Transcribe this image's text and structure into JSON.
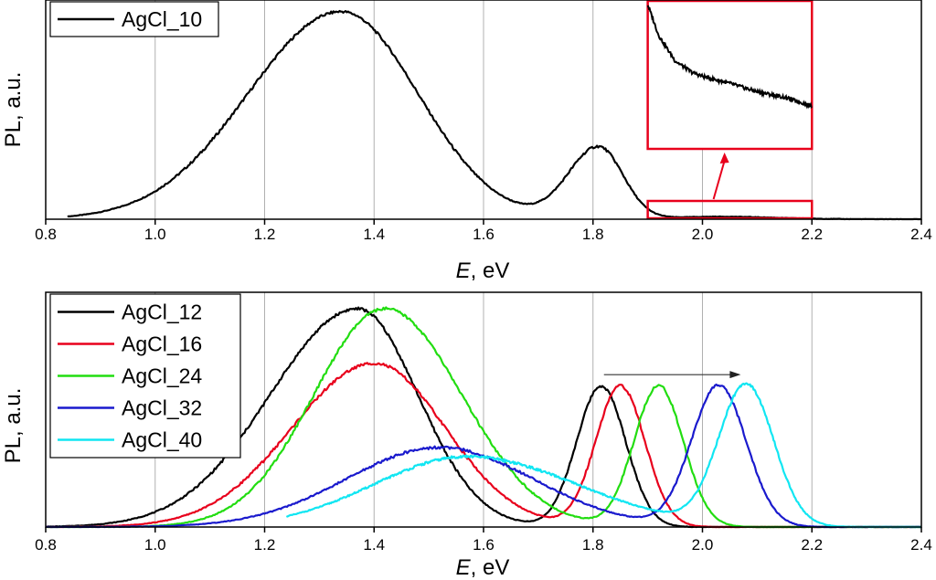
{
  "chart_data": [
    {
      "type": "line",
      "title": "",
      "xlabel": "E, eV",
      "xlabel_italic": "E",
      "xlabel_rest": ", eV",
      "ylabel": "PL, a.u.",
      "xlim": [
        0.8,
        2.4
      ],
      "ylim": [
        0,
        1
      ],
      "xticks": [
        "0.8",
        "1.0",
        "1.2",
        "1.4",
        "1.6",
        "1.8",
        "2.0",
        "2.2",
        "2.4"
      ],
      "grid": "vertical",
      "legend_position": "top-left",
      "series": [
        {
          "name": "AgCl_10",
          "color": "#000000",
          "peaks": [
            {
              "center": 1.34,
              "height": 0.98,
              "width_left": 0.17,
              "width_right": 0.14
            },
            {
              "center": 1.81,
              "height": 0.34,
              "width_left": 0.055,
              "width_right": 0.045
            },
            {
              "center": 2.03,
              "height": 0.012,
              "width_left": 0.08,
              "width_right": 0.1
            }
          ],
          "tail": {
            "start": 0.84,
            "end": 2.4
          }
        }
      ],
      "inset": {
        "zoom_region": {
          "x": [
            1.9,
            2.2
          ],
          "y": [
            0,
            0.1
          ]
        },
        "curve": [
          [
            1.9,
            1.0
          ],
          [
            1.92,
            0.78
          ],
          [
            1.95,
            0.6
          ],
          [
            1.98,
            0.52
          ],
          [
            2.0,
            0.49
          ],
          [
            2.05,
            0.44
          ],
          [
            2.1,
            0.38
          ],
          [
            2.15,
            0.34
          ],
          [
            2.2,
            0.28
          ]
        ],
        "arrow": "from zoom box up to inset",
        "color": "#e8001c"
      }
    },
    {
      "type": "line",
      "title": "",
      "xlabel": "E, eV",
      "xlabel_italic": "E",
      "xlabel_rest": ", eV",
      "ylabel": "PL, a.u.",
      "xlim": [
        0.8,
        2.4
      ],
      "ylim": [
        0,
        1
      ],
      "xticks": [
        "0.8",
        "1.0",
        "1.2",
        "1.4",
        "1.6",
        "1.8",
        "2.0",
        "2.2",
        "2.4"
      ],
      "grid": "vertical",
      "legend_position": "top-left",
      "arrow": {
        "from": 1.82,
        "to": 2.07,
        "y": 0.67
      },
      "series": [
        {
          "name": "AgCl_12",
          "color": "#000000",
          "peaks": [
            {
              "center": 1.37,
              "height": 0.96,
              "width_left": 0.16,
              "width_right": 0.11
            },
            {
              "center": 1.815,
              "height": 0.62,
              "width_left": 0.045,
              "width_right": 0.045
            }
          ],
          "tail": {
            "start": 0.8,
            "end": 2.4
          }
        },
        {
          "name": "AgCl_16",
          "color": "#e8001c",
          "peaks": [
            {
              "center": 1.4,
              "height": 0.72,
              "width_left": 0.15,
              "width_right": 0.13
            },
            {
              "center": 1.85,
              "height": 0.62,
              "width_left": 0.045,
              "width_right": 0.045
            }
          ],
          "tail": {
            "start": 0.8,
            "end": 2.4
          }
        },
        {
          "name": "AgCl_24",
          "color": "#22dd11",
          "peaks": [
            {
              "center": 1.42,
              "height": 0.96,
              "width_left": 0.13,
              "width_right": 0.14
            },
            {
              "center": 1.92,
              "height": 0.62,
              "width_left": 0.045,
              "width_right": 0.045
            }
          ],
          "tail": {
            "start": 0.8,
            "end": 2.4
          }
        },
        {
          "name": "AgCl_32",
          "color": "#1a1acd",
          "peaks": [
            {
              "center": 1.52,
              "height": 0.35,
              "width_left": 0.17,
              "width_right": 0.17
            },
            {
              "center": 2.03,
              "height": 0.62,
              "width_left": 0.05,
              "width_right": 0.05
            }
          ],
          "tail": {
            "start": 0.8,
            "end": 2.4
          }
        },
        {
          "name": "AgCl_40",
          "color": "#11e6f2",
          "peaks": [
            {
              "center": 1.57,
              "height": 0.31,
              "width_left": 0.17,
              "width_right": 0.2
            },
            {
              "center": 2.08,
              "height": 0.62,
              "width_left": 0.05,
              "width_right": 0.05
            }
          ],
          "tail": {
            "start": 1.24,
            "end": 2.4
          }
        }
      ]
    }
  ]
}
